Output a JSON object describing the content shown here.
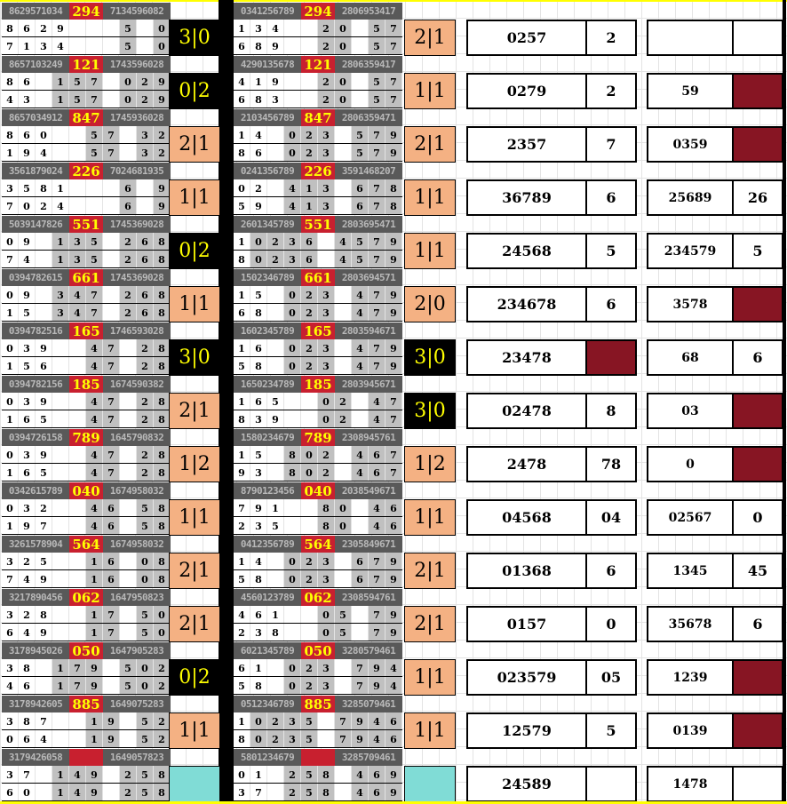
{
  "colors": {
    "header_bg": "#595959",
    "red_cell": "#c8202f",
    "highlight_text": "#ffff00",
    "shared_digit_bg": "#c0c0c0",
    "score_dark": "#000000",
    "score_light": "#f4b183",
    "score_pending": "#80dcd6",
    "marked_box": "#871523"
  },
  "left_table": [
    {
      "h": [
        "8629571034",
        "294",
        "7134596082"
      ],
      "r1": [
        "8",
        "6",
        "2",
        "9",
        "",
        "",
        "",
        "5",
        "",
        "0"
      ],
      "r2": [
        "7",
        "1",
        "3",
        "4",
        "",
        "",
        "",
        "5",
        "",
        "0"
      ],
      "score": "3|0",
      "style": "dark"
    },
    {
      "h": [
        "8657103249",
        "121",
        "1743596028"
      ],
      "r1": [
        "8",
        "6",
        "",
        "1",
        "5",
        "7",
        "",
        "0",
        "2",
        "9"
      ],
      "r2": [
        "4",
        "3",
        "",
        "1",
        "5",
        "7",
        "",
        "0",
        "2",
        "9"
      ],
      "score": "0|2",
      "style": "dark"
    },
    {
      "h": [
        "8657034912",
        "847",
        "1745936028"
      ],
      "r1": [
        "8",
        "6",
        "0",
        "",
        "",
        "5",
        "7",
        "",
        "3",
        "2"
      ],
      "r2": [
        "1",
        "9",
        "4",
        "",
        "",
        "5",
        "7",
        "",
        "3",
        "2"
      ],
      "score": "2|1",
      "style": "light"
    },
    {
      "h": [
        "3561879024",
        "226",
        "7024681935"
      ],
      "r1": [
        "3",
        "5",
        "8",
        "1",
        "",
        "",
        "",
        "6",
        "",
        "9"
      ],
      "r2": [
        "7",
        "0",
        "2",
        "4",
        "",
        "",
        "",
        "6",
        "",
        "9"
      ],
      "score": "1|1",
      "style": "light"
    },
    {
      "h": [
        "5039147826",
        "551",
        "1745369028"
      ],
      "r1": [
        "0",
        "9",
        "",
        "1",
        "3",
        "5",
        "",
        "2",
        "6",
        "8"
      ],
      "r2": [
        "7",
        "4",
        "",
        "1",
        "3",
        "5",
        "",
        "2",
        "6",
        "8"
      ],
      "score": "0|2",
      "style": "dark"
    },
    {
      "h": [
        "0394782615",
        "661",
        "1745369028"
      ],
      "r1": [
        "0",
        "9",
        "",
        "3",
        "4",
        "7",
        "",
        "2",
        "6",
        "8"
      ],
      "r2": [
        "1",
        "5",
        "",
        "3",
        "4",
        "7",
        "",
        "2",
        "6",
        "8"
      ],
      "score": "1|1",
      "style": "light"
    },
    {
      "h": [
        "0394782516",
        "165",
        "1746593028"
      ],
      "r1": [
        "0",
        "3",
        "9",
        "",
        "",
        "4",
        "7",
        "",
        "2",
        "8"
      ],
      "r2": [
        "1",
        "5",
        "6",
        "",
        "",
        "4",
        "7",
        "",
        "2",
        "8"
      ],
      "score": "3|0",
      "style": "dark"
    },
    {
      "h": [
        "0394782156",
        "185",
        "1674590382"
      ],
      "r1": [
        "0",
        "3",
        "9",
        "",
        "",
        "4",
        "7",
        "",
        "2",
        "8"
      ],
      "r2": [
        "1",
        "6",
        "5",
        "",
        "",
        "4",
        "7",
        "",
        "2",
        "8"
      ],
      "score": "2|1",
      "style": "light"
    },
    {
      "h": [
        "0394726158",
        "789",
        "1645790832"
      ],
      "r1": [
        "0",
        "3",
        "9",
        "",
        "",
        "4",
        "7",
        "",
        "2",
        "8"
      ],
      "r2": [
        "1",
        "6",
        "5",
        "",
        "",
        "4",
        "7",
        "",
        "2",
        "8"
      ],
      "score": "1|2",
      "style": "light"
    },
    {
      "h": [
        "0342615789",
        "040",
        "1674958032"
      ],
      "r1": [
        "0",
        "3",
        "2",
        "",
        "",
        "4",
        "6",
        "",
        "5",
        "8"
      ],
      "r2": [
        "1",
        "9",
        "7",
        "",
        "",
        "4",
        "6",
        "",
        "5",
        "8"
      ],
      "score": "1|1",
      "style": "light"
    },
    {
      "h": [
        "3261578904",
        "564",
        "1674958032"
      ],
      "r1": [
        "3",
        "2",
        "5",
        "",
        "",
        "1",
        "6",
        "",
        "0",
        "8"
      ],
      "r2": [
        "7",
        "4",
        "9",
        "",
        "",
        "1",
        "6",
        "",
        "0",
        "8"
      ],
      "score": "2|1",
      "style": "light"
    },
    {
      "h": [
        "3217890456",
        "062",
        "1647950823"
      ],
      "r1": [
        "3",
        "2",
        "8",
        "",
        "",
        "1",
        "7",
        "",
        "5",
        "0"
      ],
      "r2": [
        "6",
        "4",
        "9",
        "",
        "",
        "1",
        "7",
        "",
        "5",
        "0"
      ],
      "score": "2|1",
      "style": "light"
    },
    {
      "h": [
        "3178945026",
        "050",
        "1647905283"
      ],
      "r1": [
        "3",
        "8",
        "",
        "1",
        "7",
        "9",
        "",
        "5",
        "0",
        "2"
      ],
      "r2": [
        "4",
        "6",
        "",
        "1",
        "7",
        "9",
        "",
        "5",
        "0",
        "2"
      ],
      "score": "0|2",
      "style": "dark"
    },
    {
      "h": [
        "3178942605",
        "885",
        "1649075283"
      ],
      "r1": [
        "3",
        "8",
        "7",
        "",
        "",
        "1",
        "9",
        "",
        "5",
        "2"
      ],
      "r2": [
        "0",
        "6",
        "4",
        "",
        "",
        "1",
        "9",
        "",
        "5",
        "2"
      ],
      "score": "1|1",
      "style": "light"
    },
    {
      "h": [
        "3179426058",
        "",
        "1649057823"
      ],
      "r1": [
        "3",
        "7",
        "",
        "1",
        "4",
        "9",
        "",
        "2",
        "5",
        "8"
      ],
      "r2": [
        "6",
        "0",
        "",
        "1",
        "4",
        "9",
        "",
        "2",
        "5",
        "8"
      ],
      "score": "",
      "style": "empty"
    }
  ],
  "right_table": [
    {
      "h": [
        "0341256789",
        "294",
        "2806953417"
      ],
      "r1": [
        "1",
        "3",
        "4",
        "",
        "",
        "2",
        "0",
        "",
        "5",
        "7"
      ],
      "r2": [
        "6",
        "8",
        "9",
        "",
        "",
        "2",
        "0",
        "",
        "5",
        "7"
      ],
      "score": "2|1",
      "style": "light"
    },
    {
      "h": [
        "4290135678",
        "121",
        "2806359417"
      ],
      "r1": [
        "4",
        "1",
        "9",
        "",
        "",
        "2",
        "0",
        "",
        "5",
        "7"
      ],
      "r2": [
        "6",
        "8",
        "3",
        "",
        "",
        "2",
        "0",
        "",
        "5",
        "7"
      ],
      "score": "1|1",
      "style": "light"
    },
    {
      "h": [
        "2103456789",
        "847",
        "2806359471"
      ],
      "r1": [
        "1",
        "4",
        "",
        "0",
        "2",
        "3",
        "",
        "5",
        "7",
        "9"
      ],
      "r2": [
        "8",
        "6",
        "",
        "0",
        "2",
        "3",
        "",
        "5",
        "7",
        "9"
      ],
      "score": "2|1",
      "style": "light"
    },
    {
      "h": [
        "0241356789",
        "226",
        "3591468207"
      ],
      "r1": [
        "0",
        "2",
        "",
        "4",
        "1",
        "3",
        "",
        "6",
        "7",
        "8"
      ],
      "r2": [
        "5",
        "9",
        "",
        "4",
        "1",
        "3",
        "",
        "6",
        "7",
        "8"
      ],
      "score": "1|1",
      "style": "light"
    },
    {
      "h": [
        "2601345789",
        "551",
        "2803695471"
      ],
      "r1": [
        "1",
        "0",
        "2",
        "3",
        "6",
        "",
        "4",
        "5",
        "7",
        "9"
      ],
      "r2": [
        "8",
        "0",
        "2",
        "3",
        "6",
        "",
        "4",
        "5",
        "7",
        "9"
      ],
      "score": "1|1",
      "style": "light"
    },
    {
      "h": [
        "1502346789",
        "661",
        "2803694571"
      ],
      "r1": [
        "1",
        "5",
        "",
        "0",
        "2",
        "3",
        "",
        "4",
        "7",
        "9"
      ],
      "r2": [
        "6",
        "8",
        "",
        "0",
        "2",
        "3",
        "",
        "4",
        "7",
        "9"
      ],
      "score": "2|0",
      "style": "light"
    },
    {
      "h": [
        "1602345789",
        "165",
        "2803594671"
      ],
      "r1": [
        "1",
        "6",
        "",
        "0",
        "2",
        "3",
        "",
        "4",
        "7",
        "9"
      ],
      "r2": [
        "5",
        "8",
        "",
        "0",
        "2",
        "3",
        "",
        "4",
        "7",
        "9"
      ],
      "score": "3|0",
      "style": "dark"
    },
    {
      "h": [
        "1650234789",
        "185",
        "2803945671"
      ],
      "r1": [
        "1",
        "6",
        "5",
        "",
        "",
        "0",
        "2",
        "",
        "4",
        "7"
      ],
      "r2": [
        "8",
        "3",
        "9",
        "",
        "",
        "0",
        "2",
        "",
        "4",
        "7"
      ],
      "score": "3|0",
      "style": "dark"
    },
    {
      "h": [
        "1580234679",
        "789",
        "2308945761"
      ],
      "r1": [
        "1",
        "5",
        "",
        "8",
        "0",
        "2",
        "",
        "4",
        "6",
        "7"
      ],
      "r2": [
        "9",
        "3",
        "",
        "8",
        "0",
        "2",
        "",
        "4",
        "6",
        "7"
      ],
      "score": "1|2",
      "style": "light"
    },
    {
      "h": [
        "8790123456",
        "040",
        "2038549671"
      ],
      "r1": [
        "7",
        "9",
        "1",
        "",
        "",
        "8",
        "0",
        "",
        "4",
        "6"
      ],
      "r2": [
        "2",
        "3",
        "5",
        "",
        "",
        "8",
        "0",
        "",
        "4",
        "6"
      ],
      "score": "1|1",
      "style": "light"
    },
    {
      "h": [
        "0412356789",
        "564",
        "2305849671"
      ],
      "r1": [
        "1",
        "4",
        "",
        "0",
        "2",
        "3",
        "",
        "6",
        "7",
        "9"
      ],
      "r2": [
        "5",
        "8",
        "",
        "0",
        "2",
        "3",
        "",
        "6",
        "7",
        "9"
      ],
      "score": "2|1",
      "style": "light"
    },
    {
      "h": [
        "4560123789",
        "062",
        "2308594761"
      ],
      "r1": [
        "4",
        "6",
        "1",
        "",
        "",
        "0",
        "5",
        "",
        "7",
        "9"
      ],
      "r2": [
        "2",
        "3",
        "8",
        "",
        "",
        "0",
        "5",
        "",
        "7",
        "9"
      ],
      "score": "2|1",
      "style": "light"
    },
    {
      "h": [
        "6021345789",
        "050",
        "3280579461"
      ],
      "r1": [
        "6",
        "1",
        "",
        "0",
        "2",
        "3",
        "",
        "7",
        "9",
        "4"
      ],
      "r2": [
        "5",
        "8",
        "",
        "0",
        "2",
        "3",
        "",
        "7",
        "9",
        "4"
      ],
      "score": "1|1",
      "style": "light"
    },
    {
      "h": [
        "0512346789",
        "885",
        "3285079461"
      ],
      "r1": [
        "1",
        "0",
        "2",
        "3",
        "5",
        "",
        "7",
        "9",
        "4",
        "6"
      ],
      "r2": [
        "8",
        "0",
        "2",
        "3",
        "5",
        "",
        "7",
        "9",
        "4",
        "6"
      ],
      "score": "1|1",
      "style": "light"
    },
    {
      "h": [
        "5801234679",
        "",
        "3285709461"
      ],
      "r1": [
        "0",
        "1",
        "",
        "2",
        "5",
        "8",
        "",
        "4",
        "6",
        "9"
      ],
      "r2": [
        "3",
        "7",
        "",
        "2",
        "5",
        "8",
        "",
        "4",
        "6",
        "9"
      ],
      "score": "",
      "style": "empty"
    }
  ],
  "summary_boxes": [
    {
      "a": "0257",
      "b": "2",
      "c": "",
      "d": ""
    },
    {
      "a": "0279",
      "b": "2",
      "c": "59",
      "d": "",
      "d_marked": true
    },
    {
      "a": "2357",
      "b": "7",
      "c": "0359",
      "d": "",
      "d_marked": true
    },
    {
      "a": "36789",
      "b": "6",
      "c": "25689",
      "d": "26"
    },
    {
      "a": "24568",
      "b": "5",
      "c": "234579",
      "d": "5"
    },
    {
      "a": "234678",
      "b": "6",
      "c": "3578",
      "d": "",
      "d_marked": true
    },
    {
      "a": "23478",
      "b": "",
      "b_marked": true,
      "c": "68",
      "d": "6"
    },
    {
      "a": "02478",
      "b": "8",
      "c": "03",
      "d": "",
      "d_marked": true
    },
    {
      "a": "2478",
      "b": "78",
      "c": "0",
      "d": "",
      "d_marked": true
    },
    {
      "a": "04568",
      "b": "04",
      "c": "02567",
      "d": "0"
    },
    {
      "a": "01368",
      "b": "6",
      "c": "1345",
      "d": "45"
    },
    {
      "a": "0157",
      "b": "0",
      "c": "35678",
      "d": "6"
    },
    {
      "a": "023579",
      "b": "05",
      "c": "1239",
      "d": "",
      "d_marked": true
    },
    {
      "a": "12579",
      "b": "5",
      "c": "0139",
      "d": "",
      "d_marked": true
    },
    {
      "a": "24589",
      "b": "",
      "c": "1478",
      "d": ""
    }
  ]
}
